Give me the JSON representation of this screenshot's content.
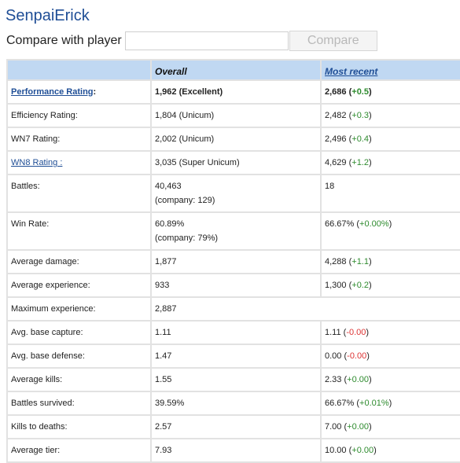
{
  "player_name": "SenpaiErick",
  "compare": {
    "label": "Compare with player",
    "input_value": "",
    "button_label": "Compare"
  },
  "headers": {
    "overall": "Overall",
    "most_recent": "Most recent"
  },
  "rows": [
    {
      "label": "Performance Rating",
      "label_suffix": ":",
      "label_link": true,
      "bold": true,
      "overall": "1,962 (Excellent)",
      "recent": "2,686",
      "recent_delta_prefix": " (",
      "recent_delta": "+0.5",
      "recent_delta_suffix": ")",
      "delta_sign": "pos"
    },
    {
      "label": "Efficiency Rating:",
      "overall": "1,804 (Unicum)",
      "recent": "2,482",
      "recent_delta_prefix": " (",
      "recent_delta": "+0.3",
      "recent_delta_suffix": ")",
      "delta_sign": "pos"
    },
    {
      "label": "WN7 Rating:",
      "overall": "2,002 (Unicum)",
      "recent": "2,496",
      "recent_delta_prefix": " (",
      "recent_delta": "+0.4",
      "recent_delta_suffix": ")",
      "delta_sign": "pos"
    },
    {
      "label": "WN8 Rating :",
      "label_link": true,
      "overall": "3,035 (Super Unicum)",
      "recent": "4,629",
      "recent_delta_prefix": " (",
      "recent_delta": "+1.2",
      "recent_delta_suffix": ")",
      "delta_sign": "pos"
    },
    {
      "label": "Battles:",
      "overall": "40,463",
      "overall_sub": "(company: 129)",
      "recent": "18"
    },
    {
      "label": "Win Rate:",
      "overall": "60.89%",
      "overall_sub": "(company: 79%)",
      "recent": "66.67%",
      "recent_delta_prefix": " (",
      "recent_delta": "+0.00%",
      "recent_delta_suffix": ")",
      "delta_sign": "pos"
    },
    {
      "label": "Average damage:",
      "overall": "1,877",
      "recent": "4,288",
      "recent_delta_prefix": " (",
      "recent_delta": "+1.1",
      "recent_delta_suffix": ")",
      "delta_sign": "pos"
    },
    {
      "label": "Average experience:",
      "overall": "933",
      "recent": "1,300",
      "recent_delta_prefix": " (",
      "recent_delta": "+0.2",
      "recent_delta_suffix": ")",
      "delta_sign": "pos"
    },
    {
      "label": "Maximum experience:",
      "overall": "2,887",
      "recent_missing": true
    },
    {
      "label": "Avg. base capture:",
      "overall": "1.11",
      "recent": "1.11",
      "recent_delta_prefix": " (",
      "recent_delta": "-0.00",
      "recent_delta_suffix": ")",
      "delta_sign": "neg"
    },
    {
      "label": "Avg. base defense:",
      "overall": "1.47",
      "recent": "0.00",
      "recent_delta_prefix": " (",
      "recent_delta": "-0.00",
      "recent_delta_suffix": ")",
      "delta_sign": "neg"
    },
    {
      "label": "Average kills:",
      "overall": "1.55",
      "recent": "2.33",
      "recent_delta_prefix": " (",
      "recent_delta": "+0.00",
      "recent_delta_suffix": ")",
      "delta_sign": "pos"
    },
    {
      "label": "Battles survived:",
      "overall": "39.59%",
      "recent": "66.67%",
      "recent_delta_prefix": " (",
      "recent_delta": "+0.01%",
      "recent_delta_suffix": ")",
      "delta_sign": "pos"
    },
    {
      "label": "Kills to deaths:",
      "overall": "2.57",
      "recent": "7.00",
      "recent_delta_prefix": " (",
      "recent_delta": "+0.00",
      "recent_delta_suffix": ")",
      "delta_sign": "pos"
    },
    {
      "label": "Average tier:",
      "overall": "7.93",
      "recent": "10.00",
      "recent_delta_prefix": " (",
      "recent_delta": "+0.00",
      "recent_delta_suffix": ")",
      "delta_sign": "pos"
    }
  ],
  "colors": {
    "brand": "#1f4e96",
    "header_bg": "#c0d8f2",
    "positive": "#2e8b2e",
    "negative": "#dd3333"
  }
}
